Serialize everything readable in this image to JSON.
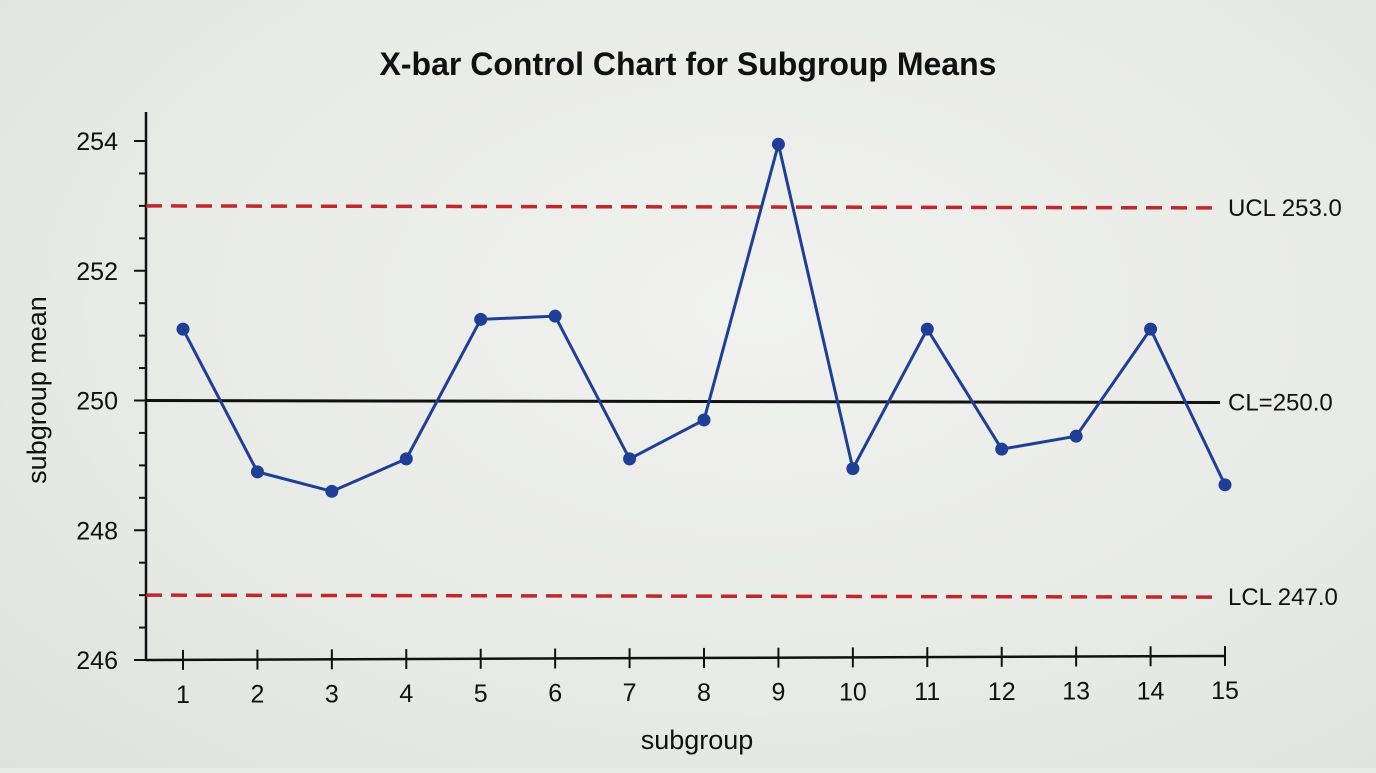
{
  "chart_data": {
    "type": "line",
    "title": "X-bar Control Chart for Subgroup Means",
    "xlabel": "subgroup",
    "ylabel": "subgroup mean",
    "x": [
      1,
      2,
      3,
      4,
      5,
      6,
      7,
      8,
      9,
      10,
      11,
      12,
      13,
      14,
      15
    ],
    "series": [
      {
        "values": [
          251.1,
          248.9,
          248.6,
          249.1,
          251.25,
          251.3,
          249.1,
          249.7,
          253.95,
          248.95,
          251.1,
          249.25,
          249.45,
          251.1,
          248.7
        ],
        "color": "#1f3f97"
      }
    ],
    "xlim": [
      0.5,
      15
    ],
    "ylim": [
      246,
      254.5
    ],
    "yticks": [
      246,
      248,
      250,
      252,
      254
    ],
    "xticks": [
      1,
      2,
      3,
      4,
      5,
      6,
      7,
      8,
      9,
      10,
      11,
      12,
      13,
      14,
      15
    ],
    "control_lines": [
      {
        "name": "ucl",
        "value": 253.0,
        "label": "UCL 253.0",
        "style": "dashed",
        "color": "#c0282b"
      },
      {
        "name": "cl",
        "value": 250.0,
        "label": "CL=250.0",
        "style": "solid",
        "color": "#111111"
      },
      {
        "name": "lcl",
        "value": 247.0,
        "label": "LCL 247.0",
        "style": "dashed",
        "color": "#c0282b"
      }
    ],
    "grid": false,
    "legend": "none"
  }
}
